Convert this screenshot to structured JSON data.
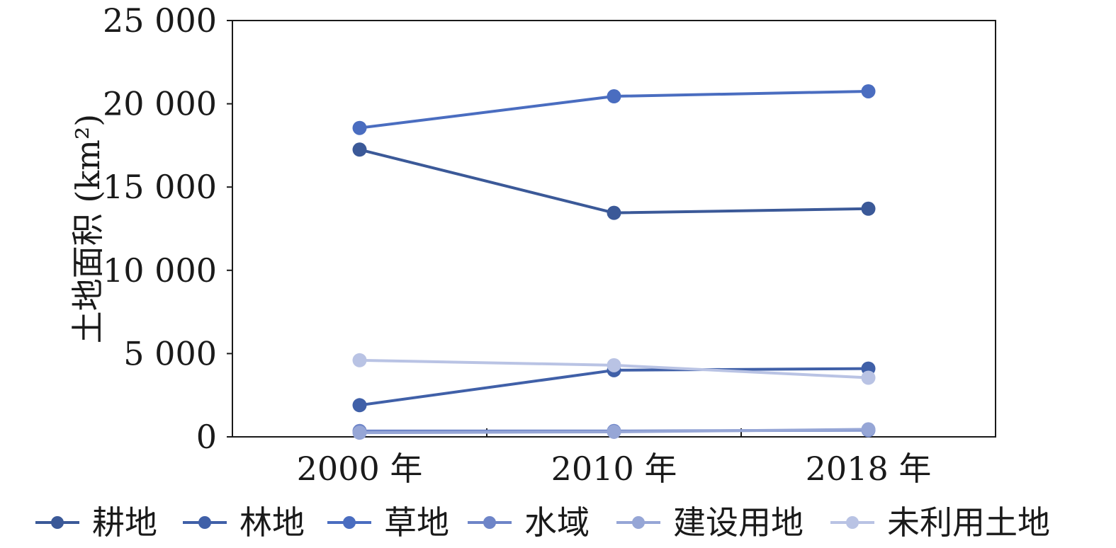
{
  "chart_data": {
    "type": "line",
    "title": "",
    "xlabel": "",
    "ylabel": "土地面积 (km²)",
    "categories": [
      "2000 年",
      "2010 年",
      "2018 年"
    ],
    "ylim": [
      0,
      25000
    ],
    "yticks": [
      0,
      5000,
      10000,
      15000,
      20000,
      25000
    ],
    "ytick_labels": [
      "0",
      "5 000",
      "10 000",
      "15 000",
      "20 000",
      "25 000"
    ],
    "grid": false,
    "legend_position": "bottom",
    "series": [
      {
        "name": "耕地",
        "values": [
          17250,
          13450,
          13700
        ],
        "color": "#3b5998"
      },
      {
        "name": "林地",
        "values": [
          1900,
          4000,
          4100
        ],
        "color": "#4060a8"
      },
      {
        "name": "草地",
        "values": [
          18550,
          20450,
          20750
        ],
        "color": "#4a6dc0"
      },
      {
        "name": "水域",
        "values": [
          350,
          350,
          400
        ],
        "color": "#6e85c8"
      },
      {
        "name": "建设用地",
        "values": [
          250,
          300,
          450
        ],
        "color": "#96a6d6"
      },
      {
        "name": "未利用土地",
        "values": [
          4600,
          4300,
          3550
        ],
        "color": "#b9c3e4"
      }
    ]
  }
}
